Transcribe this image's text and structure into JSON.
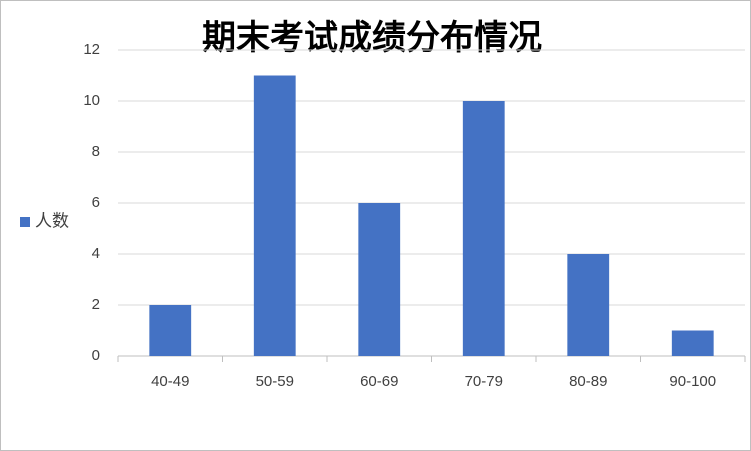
{
  "chart_data": {
    "type": "bar",
    "title": "期末考试成绩分布情况",
    "categories": [
      "40-49",
      "50-59",
      "60-69",
      "70-79",
      "80-89",
      "90-100"
    ],
    "series": [
      {
        "name": "人数",
        "color": "#4472c4",
        "values": [
          2,
          11,
          6,
          10,
          4,
          1
        ]
      }
    ],
    "ylim": [
      0,
      12
    ],
    "yticks": [
      0,
      2,
      4,
      6,
      8,
      10,
      12
    ],
    "grid": true,
    "legend": "left"
  }
}
